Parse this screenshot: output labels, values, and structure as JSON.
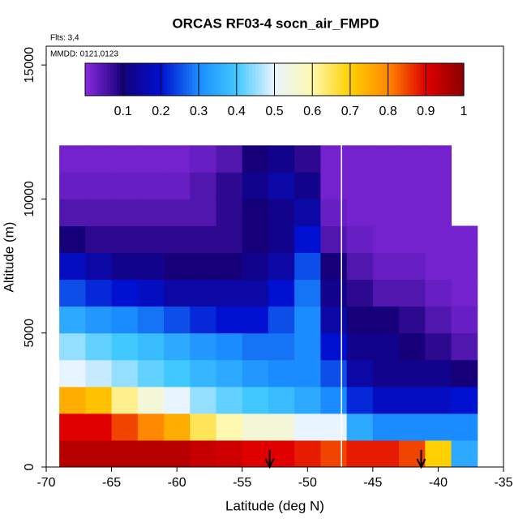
{
  "chart_data": {
    "type": "heatmap",
    "title": "ORCAS RF03-4 socn_air_FMPD",
    "annotations": [
      "Flts: 3,4",
      "MMDD: 0121,0123"
    ],
    "x_label": "Latitude (deg N)",
    "y_label": "Altitude (m)",
    "xlim": [
      -70,
      -35
    ],
    "xticks": [
      -70,
      -65,
      -60,
      -55,
      -50,
      -45,
      -40,
      -35
    ],
    "ylim": [
      0,
      15700
    ],
    "yticks": [
      0,
      5000,
      10000,
      15000
    ],
    "x_edges": [
      -69,
      -67,
      -65,
      -63,
      -61,
      -59,
      -57,
      -55,
      -53,
      -51,
      -49,
      -47,
      -45,
      -43,
      -41,
      -39,
      -37
    ],
    "y_edges": [
      0,
      1000,
      2000,
      3000,
      4000,
      5000,
      6000,
      7000,
      8000,
      9000,
      10000,
      11000,
      12000
    ],
    "z": [
      [
        0.95,
        0.95,
        0.95,
        0.95,
        0.95,
        0.93,
        0.92,
        0.9,
        0.9,
        0.88,
        0.85,
        0.88,
        0.88,
        0.85,
        0.7,
        0.35
      ],
      [
        0.9,
        0.9,
        0.85,
        0.8,
        0.75,
        0.65,
        0.6,
        0.55,
        0.55,
        0.5,
        0.5,
        0.35,
        0.3,
        0.3,
        0.3,
        0.3
      ],
      [
        0.75,
        0.72,
        0.62,
        0.55,
        0.5,
        0.45,
        0.42,
        0.4,
        0.38,
        0.35,
        0.3,
        0.22,
        0.18,
        0.18,
        0.18,
        0.2
      ],
      [
        0.5,
        0.48,
        0.45,
        0.42,
        0.4,
        0.37,
        0.35,
        0.32,
        0.3,
        0.3,
        0.25,
        0.15,
        0.12,
        0.12,
        0.12,
        0.1
      ],
      [
        0.45,
        0.42,
        0.4,
        0.38,
        0.35,
        0.32,
        0.3,
        0.28,
        0.28,
        0.3,
        0.2,
        0.12,
        0.12,
        0.1,
        0.08,
        0.05
      ],
      [
        0.35,
        0.32,
        0.3,
        0.28,
        0.25,
        0.22,
        0.2,
        0.2,
        0.25,
        0.3,
        0.15,
        0.1,
        0.1,
        0.08,
        0.05,
        0.03
      ],
      [
        0.25,
        0.22,
        0.2,
        0.18,
        0.15,
        0.15,
        0.15,
        0.15,
        0.2,
        0.28,
        0.12,
        0.08,
        0.05,
        0.05,
        0.03,
        0.02
      ],
      [
        0.18,
        0.15,
        0.12,
        0.12,
        0.1,
        0.1,
        0.1,
        0.12,
        0.15,
        0.25,
        0.1,
        0.05,
        0.03,
        0.03,
        0.02,
        0.02
      ],
      [
        0.1,
        0.08,
        0.08,
        0.08,
        0.08,
        0.08,
        0.08,
        0.1,
        0.12,
        0.2,
        0.05,
        0.03,
        0.02,
        0.02,
        0.02,
        0.02
      ],
      [
        0.05,
        0.05,
        0.05,
        0.05,
        0.05,
        0.05,
        0.08,
        0.1,
        0.12,
        0.15,
        0.03,
        0.02,
        0.02,
        0.02,
        0.02,
        null
      ],
      [
        0.03,
        0.03,
        0.03,
        0.03,
        0.03,
        0.05,
        0.08,
        0.12,
        0.15,
        0.12,
        0.02,
        0.02,
        0.02,
        0.02,
        0.02,
        null
      ],
      [
        0.02,
        0.02,
        0.02,
        0.02,
        0.02,
        0.03,
        0.05,
        0.1,
        0.12,
        0.08,
        0.02,
        0.02,
        0.02,
        0.02,
        0.02,
        null
      ]
    ],
    "divider_x": -47.4,
    "arrows_x": [
      -52.9,
      -41.3
    ],
    "colorbar": {
      "lim": [
        0,
        1
      ],
      "ticks": [
        0.1,
        0.2,
        0.3,
        0.4,
        0.5,
        0.6,
        0.7,
        0.8,
        0.9,
        1.0
      ],
      "colors": [
        "#8a2be2",
        "#15007a",
        "#0010d0",
        "#1a8cff",
        "#40c8ff",
        "#e8f4ff",
        "#fff8b0",
        "#ffd000",
        "#ff8800",
        "#e00000",
        "#8b0000"
      ]
    }
  }
}
